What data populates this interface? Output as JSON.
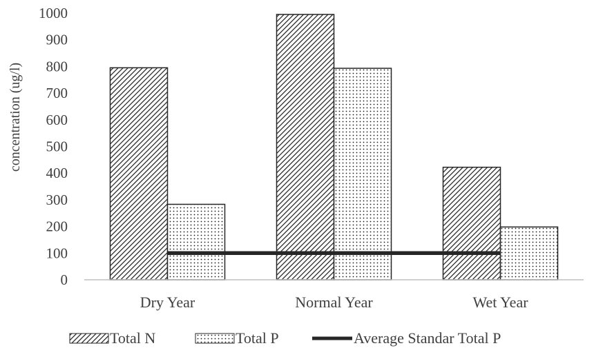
{
  "chart_data": {
    "type": "bar",
    "title": "",
    "xlabel": "",
    "ylabel": "concentration (ug/l)",
    "categories": [
      "Dry Year",
      "Normal Year",
      "Wet Year"
    ],
    "series": [
      {
        "name": "Total N",
        "kind": "bar",
        "pattern": "diagonal-hatch",
        "values": [
          795,
          995,
          422
        ]
      },
      {
        "name": "Total P",
        "kind": "bar",
        "pattern": "dots",
        "values": [
          283,
          793,
          198
        ]
      },
      {
        "name": "Average Standar Total P",
        "kind": "line",
        "color": "#262626",
        "values": [
          100,
          100,
          100
        ]
      }
    ],
    "ylim": [
      0,
      1000
    ],
    "yticks": [
      0,
      100,
      200,
      300,
      400,
      500,
      600,
      700,
      800,
      900,
      1000
    ],
    "grid": false,
    "legend": "bottom"
  }
}
